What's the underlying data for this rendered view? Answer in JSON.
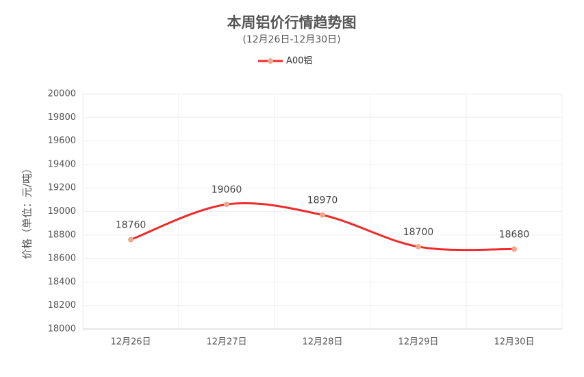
{
  "chart_data": {
    "type": "line",
    "title": "本周铝价行情趋势图",
    "subtitle": "(12月26日-12月30日)",
    "y_label": "价格（单位：元/吨）",
    "categories": [
      "12月26日",
      "12月27日",
      "12月28日",
      "12月29日",
      "12月30日"
    ],
    "series": [
      {
        "name": "A00铝",
        "color": "#f02a2a",
        "marker_color": "#f0a78c",
        "values": [
          18760,
          19060,
          18970,
          18700,
          18680
        ]
      }
    ],
    "ylim": [
      18000,
      20000
    ],
    "yticks": [
      18000,
      18200,
      18400,
      18600,
      18800,
      19000,
      19200,
      19400,
      19600,
      19800,
      20000
    ],
    "grid": true,
    "smooth": true,
    "legend": "top"
  }
}
